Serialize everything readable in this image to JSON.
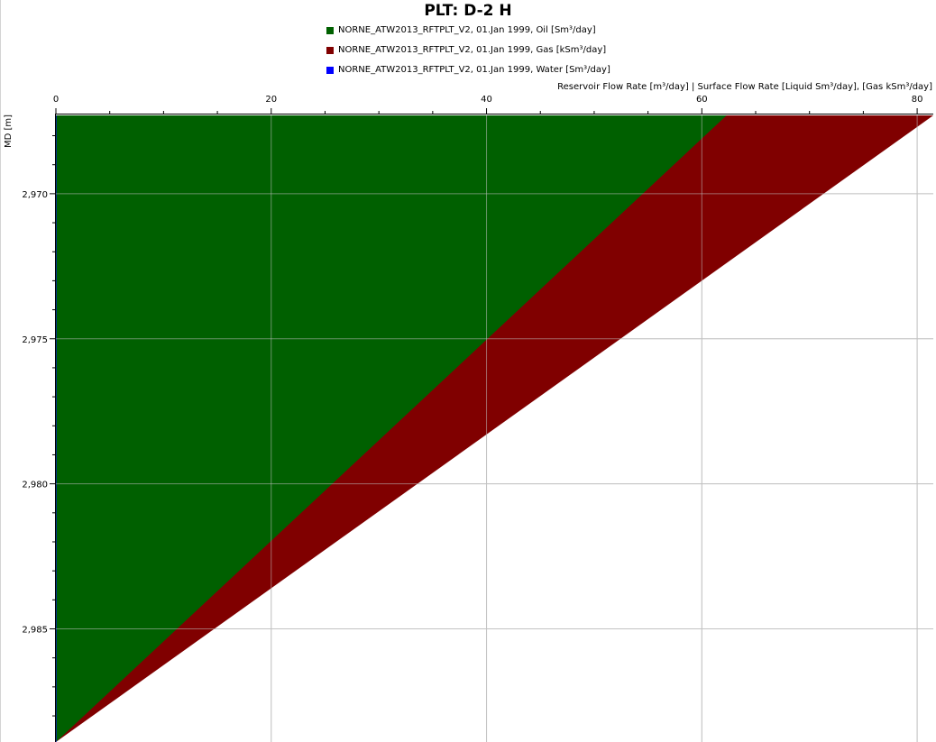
{
  "title": "PLT: D-2 H",
  "chart_data": {
    "type": "area",
    "title": "PLT: D-2 H",
    "xlabel": "Reservoir Flow Rate [m³/day] | Surface Flow Rate [Liquid Sm³/day], [Gas kSm³/day]",
    "ylabel": "MD [m]",
    "xlim": [
      0,
      81.5
    ],
    "ylim": [
      2967.3,
      2988.9
    ],
    "y_inverted": true,
    "x_axis_position": "top",
    "grid": true,
    "legend_placement": "top-center",
    "x_ticks": [
      0,
      20,
      40,
      60,
      80
    ],
    "x_tick_labels": [
      "0",
      "20",
      "40",
      "60",
      "80"
    ],
    "y_ticks": [
      2970,
      2975,
      2980,
      2985
    ],
    "y_tick_labels": [
      "2,970",
      "2,975",
      "2,980",
      "2,985"
    ],
    "series": [
      {
        "name": "NORNE_ATW2013_RFTPLT_V2, 01.Jan 1999, Oil [Sm³/day]",
        "color": "#006000",
        "points": [
          [
            0,
            2988.9
          ],
          [
            62.3,
            2967.3
          ]
        ]
      },
      {
        "name": "NORNE_ATW2013_RFTPLT_V2, 01.Jan 1999, Gas [kSm³/day]",
        "color": "#800000",
        "points": [
          [
            0,
            2988.9
          ],
          [
            81.5,
            2967.3
          ]
        ]
      },
      {
        "name": "NORNE_ATW2013_RFTPLT_V2, 01.Jan 1999, Water [Sm³/day]",
        "color": "#0000ff",
        "points": [
          [
            0,
            2988.9
          ],
          [
            0,
            2967.3
          ]
        ]
      }
    ]
  }
}
